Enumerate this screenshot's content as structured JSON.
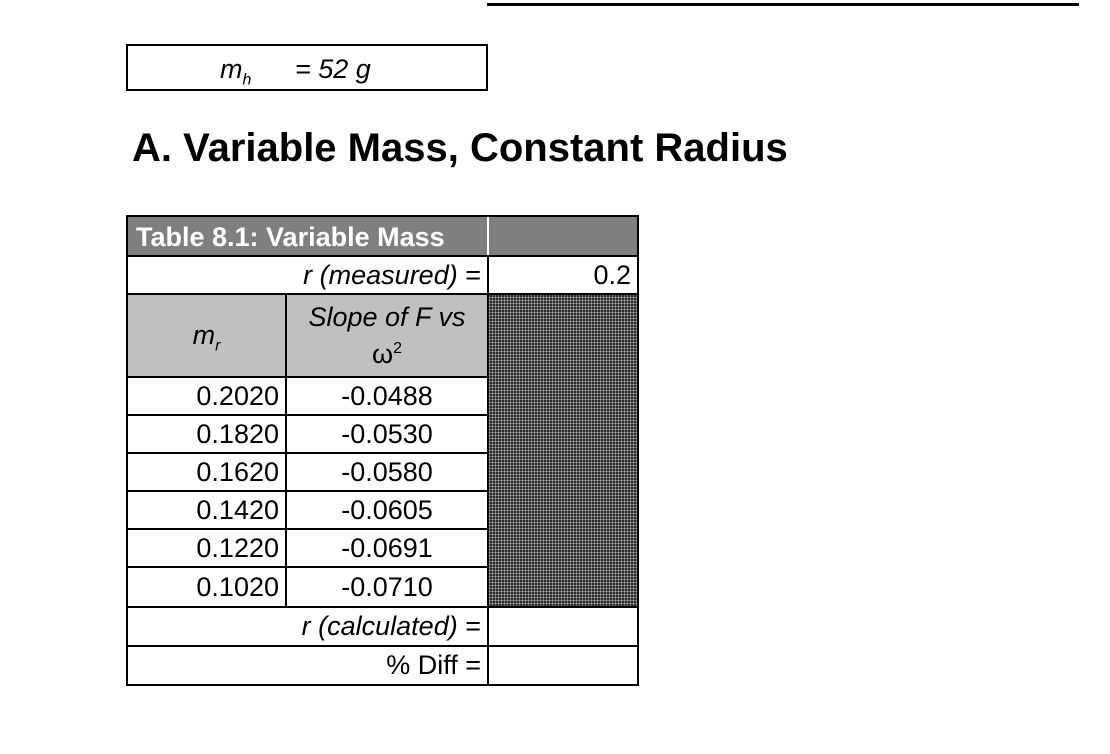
{
  "header_mass": {
    "symbol": "m",
    "subscript": "h",
    "equals_value": "= 52 g"
  },
  "section_title": "A. Variable Mass, Constant Radius",
  "table": {
    "caption": "Table 8.1: Variable Mass",
    "r_measured_label_italic": "r (measured)",
    "r_measured_equals": " =",
    "r_measured_value": "0.2",
    "col_mr_symbol": "m",
    "col_mr_subscript": "r",
    "col_slope_line1": "Slope of F vs",
    "col_slope_line2": "ω",
    "col_slope_sup": "2",
    "rows": [
      {
        "mr": "0.2020",
        "slope": "-0.0488"
      },
      {
        "mr": "0.1820",
        "slope": "-0.0530"
      },
      {
        "mr": "0.1620",
        "slope": "-0.0580"
      },
      {
        "mr": "0.1420",
        "slope": "-0.0605"
      },
      {
        "mr": "0.1220",
        "slope": "-0.0691"
      },
      {
        "mr": "0.1020",
        "slope": "-0.0710"
      }
    ],
    "r_calculated_label_italic": "r",
    "r_calculated_label_rest": " (calculated)",
    "r_calculated_equals": " =",
    "r_calculated_value": "",
    "pct_diff_label": "% Diff =",
    "pct_diff_value": ""
  }
}
